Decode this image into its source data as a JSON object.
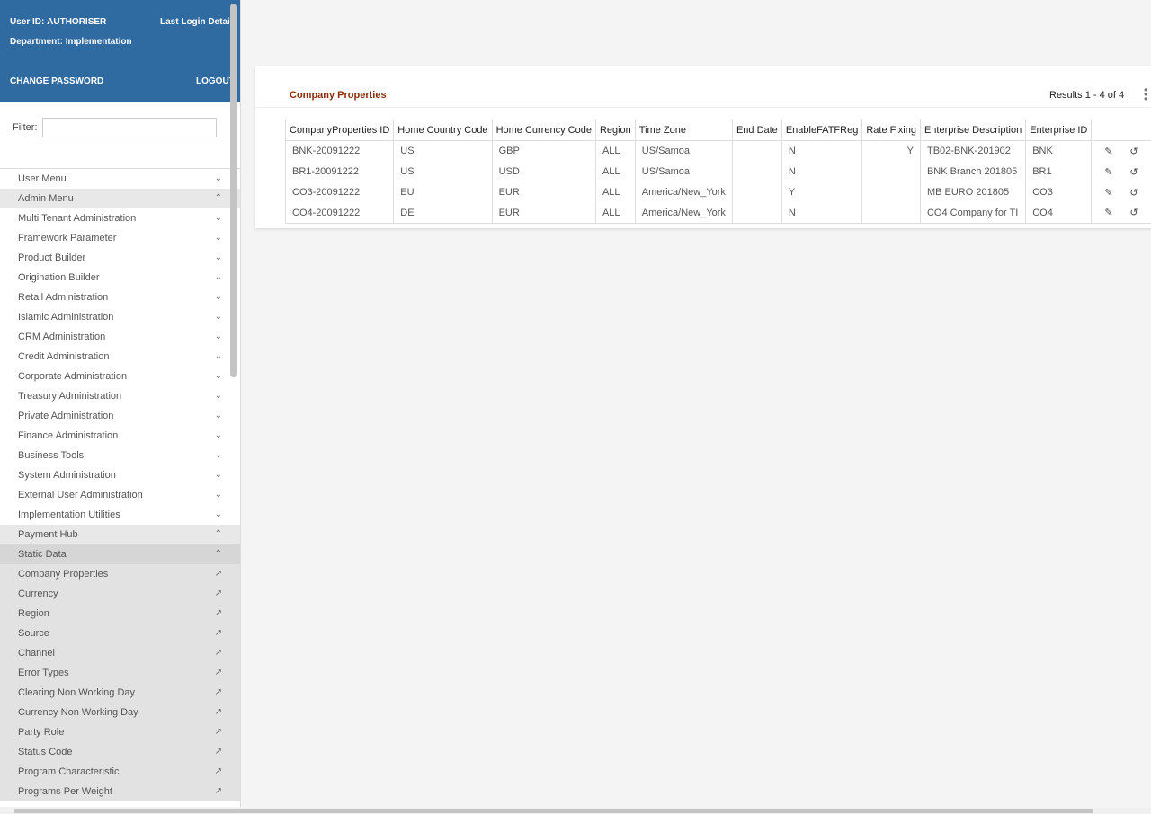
{
  "header": {
    "user_id_label": "User ID:",
    "user_id": "AUTHORISER",
    "last_login": "Last Login Details",
    "department_label": "Department:",
    "department": "Implementation",
    "change_password": "CHANGE PASSWORD",
    "logout": "LOGOUT"
  },
  "filter": {
    "label": "Filter:",
    "value": ""
  },
  "menu": [
    {
      "label": "User Menu",
      "type": "top",
      "icon": "chevron-down"
    },
    {
      "label": "Admin Menu",
      "type": "hd",
      "icon": "chevron-up"
    },
    {
      "label": "Multi Tenant Administration",
      "type": "item",
      "icon": "chevron-down"
    },
    {
      "label": "Framework Parameter",
      "type": "item",
      "icon": "chevron-down"
    },
    {
      "label": "Product Builder",
      "type": "item",
      "icon": "chevron-down"
    },
    {
      "label": "Origination Builder",
      "type": "item",
      "icon": "chevron-down"
    },
    {
      "label": "Retail Administration",
      "type": "item",
      "icon": "chevron-down"
    },
    {
      "label": "Islamic Administration",
      "type": "item",
      "icon": "chevron-down"
    },
    {
      "label": "CRM Administration",
      "type": "item",
      "icon": "chevron-down"
    },
    {
      "label": "Credit Administration",
      "type": "item",
      "icon": "chevron-down"
    },
    {
      "label": "Corporate Administration",
      "type": "item",
      "icon": "chevron-down"
    },
    {
      "label": "Treasury Administration",
      "type": "item",
      "icon": "chevron-down"
    },
    {
      "label": "Private Administration",
      "type": "item",
      "icon": "chevron-down"
    },
    {
      "label": "Finance Administration",
      "type": "item",
      "icon": "chevron-down"
    },
    {
      "label": "Business Tools",
      "type": "item",
      "icon": "chevron-down"
    },
    {
      "label": "System Administration",
      "type": "item",
      "icon": "chevron-down"
    },
    {
      "label": "External User Administration",
      "type": "item",
      "icon": "chevron-down"
    },
    {
      "label": "Implementation Utilities",
      "type": "item",
      "icon": "chevron-down"
    },
    {
      "label": "Payment Hub",
      "type": "hd",
      "icon": "chevron-up"
    },
    {
      "label": "Static Data",
      "type": "hd2",
      "icon": "chevron-up"
    },
    {
      "label": "Company Properties",
      "type": "sub",
      "icon": "open-link"
    },
    {
      "label": "Currency",
      "type": "sub",
      "icon": "open-link"
    },
    {
      "label": "Region",
      "type": "sub",
      "icon": "open-link"
    },
    {
      "label": "Source",
      "type": "sub",
      "icon": "open-link"
    },
    {
      "label": "Channel",
      "type": "sub",
      "icon": "open-link"
    },
    {
      "label": "Error Types",
      "type": "sub",
      "icon": "open-link"
    },
    {
      "label": "Clearing Non Working Day",
      "type": "sub",
      "icon": "open-link"
    },
    {
      "label": "Currency Non Working Day",
      "type": "sub",
      "icon": "open-link"
    },
    {
      "label": "Party Role",
      "type": "sub",
      "icon": "open-link"
    },
    {
      "label": "Status Code",
      "type": "sub",
      "icon": "open-link"
    },
    {
      "label": "Program Characteristic",
      "type": "sub",
      "icon": "open-link"
    },
    {
      "label": "Programs Per Weight",
      "type": "sub",
      "icon": "open-link"
    }
  ],
  "card": {
    "title": "Company Properties",
    "results": "Results 1 - 4 of 4",
    "columns": [
      "CompanyProperties ID",
      "Home Country Code",
      "Home Currency Code",
      "Region",
      "Time Zone",
      "End Date",
      "EnableFATFReg",
      "Rate Fixing",
      "Enterprise Description",
      "Enterprise ID",
      ""
    ],
    "rows": [
      [
        "BNK-20091222",
        "US",
        "GBP",
        "ALL",
        "US/Samoa",
        "",
        "N",
        "Y",
        "TB02-BNK-201902",
        "BNK"
      ],
      [
        "BR1-20091222",
        "US",
        "USD",
        "ALL",
        "US/Samoa",
        "",
        "N",
        "",
        "BNK Branch 201805",
        "BR1"
      ],
      [
        "CO3-20091222",
        "EU",
        "EUR",
        "ALL",
        "America/New_York",
        "",
        "Y",
        "",
        "MB EURO 201805",
        "CO3"
      ],
      [
        "CO4-20091222",
        "DE",
        "EUR",
        "ALL",
        "America/New_York",
        "",
        "N",
        "",
        "CO4 Company for TI",
        "CO4"
      ]
    ]
  }
}
